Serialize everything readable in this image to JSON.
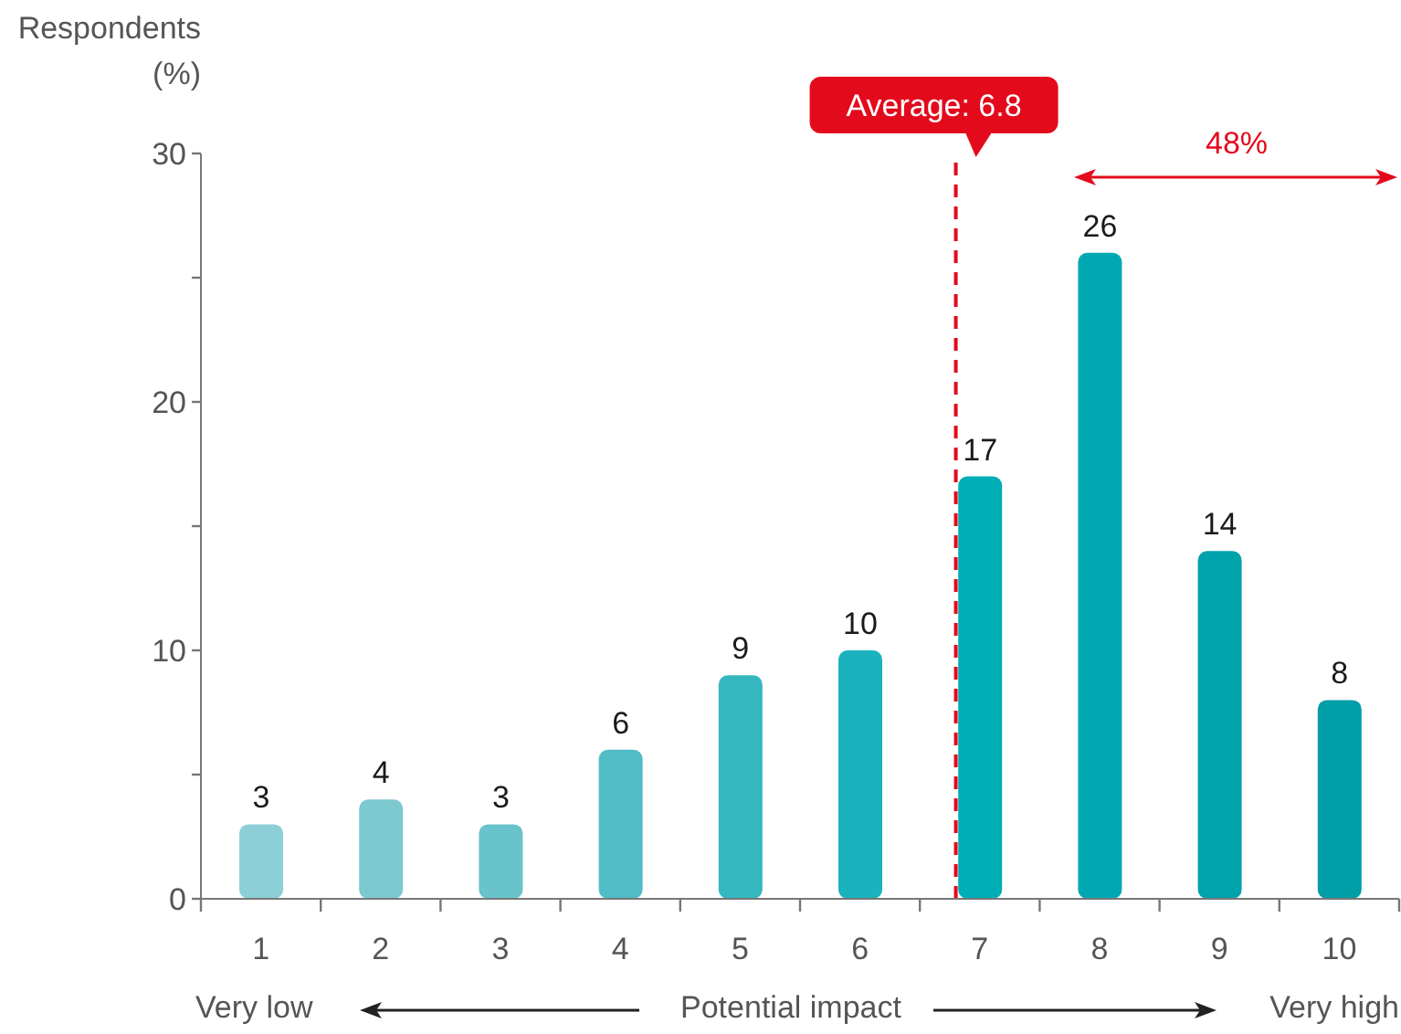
{
  "chart_data": {
    "type": "bar",
    "ylabel": "Respondents (%)",
    "xlabel": "Potential impact",
    "x": [
      1,
      2,
      3,
      4,
      5,
      6,
      7,
      8,
      9,
      10
    ],
    "values": [
      3,
      4,
      3,
      6,
      9,
      10,
      17,
      26,
      14,
      8
    ],
    "colors": [
      "#8ccfd6",
      "#7cc9d0",
      "#68c3ca",
      "#50bcc5",
      "#35b7c0",
      "#1ab2bc",
      "#00aeb6",
      "#00a9b1",
      "#00a3ab",
      "#009ea6"
    ],
    "xlim": [
      0.5,
      10.5
    ],
    "xticks": [
      {
        "value": 0.5,
        "label": null
      },
      1,
      {
        "value": 1.5,
        "label": null
      },
      2,
      {
        "value": 2.5,
        "label": null
      },
      3,
      {
        "value": 3.5,
        "label": null
      },
      4,
      {
        "value": 4.5,
        "label": null
      },
      5,
      {
        "value": 5.5,
        "label": null
      },
      6,
      {
        "value": 6.5,
        "label": null
      },
      7,
      {
        "value": 7.5,
        "label": null
      },
      8,
      {
        "value": 8.5,
        "label": null
      },
      9,
      {
        "value": 9.5,
        "label": null
      },
      10,
      {
        "value": 10.5,
        "label": null
      }
    ],
    "ylim": [
      0,
      30
    ],
    "yticks": [
      0,
      {
        "value": 5,
        "label": null
      },
      10,
      {
        "value": 15,
        "label": null
      },
      20,
      {
        "value": 25,
        "label": null
      },
      30
    ],
    "data_labels": true,
    "ref_lines": [
      {
        "axis": "x",
        "value": 6.8,
        "label": "Average: 6.8",
        "color": "#e30a1c",
        "line_style": "dashed"
      }
    ],
    "annotations": [
      "48%",
      "Very low",
      "Very high"
    ]
  }
}
